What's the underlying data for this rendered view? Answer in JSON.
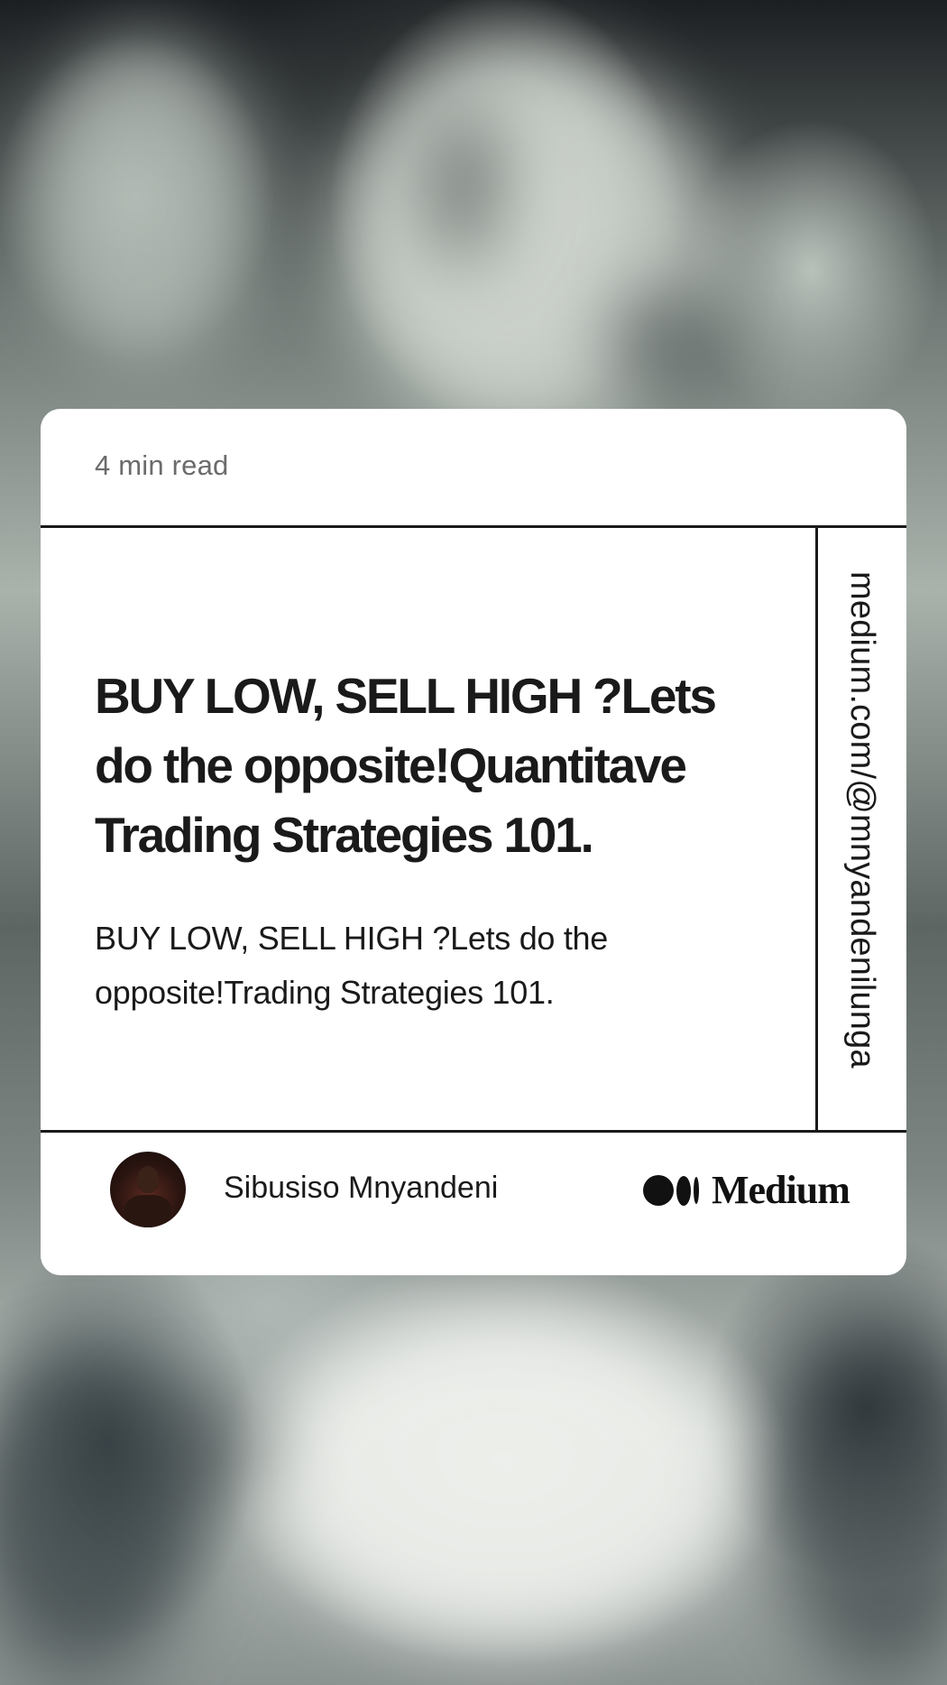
{
  "card": {
    "read_time": "4 min read",
    "headline": "BUY LOW, SELL HIGH ?Lets do the opposite!Quantitave Trading Strategies 101.",
    "subtitle": "BUY LOW, SELL HIGH ?Lets do the opposite!Trading Strategies 101.",
    "side_url": "medium.com/@mnyandenilunga",
    "author_name": "Sibusiso Mnyandeni",
    "brand_name": "Medium"
  },
  "colors": {
    "card_background": "#ffffff",
    "text_primary": "#1a1a1a",
    "text_muted": "#6b6b6b"
  }
}
